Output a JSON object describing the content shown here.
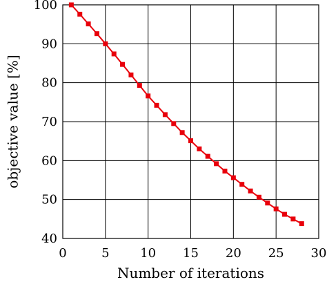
{
  "chart_data": {
    "type": "line",
    "xlabel": "Number of iterations",
    "ylabel": "objective value [%]",
    "xlim": [
      0,
      30
    ],
    "ylim": [
      40,
      100
    ],
    "x_ticks": [
      0,
      5,
      10,
      15,
      20,
      25,
      30
    ],
    "y_ticks": [
      40,
      50,
      60,
      70,
      80,
      90,
      100
    ],
    "grid": true,
    "series": [
      {
        "color": "#e8000b",
        "marker": "square",
        "x": [
          1,
          2,
          3,
          4,
          5,
          6,
          7,
          8,
          9,
          10,
          11,
          12,
          13,
          14,
          15,
          16,
          17,
          18,
          19,
          20,
          21,
          22,
          23,
          24,
          25,
          26,
          27,
          28
        ],
        "y": [
          100,
          97.6,
          95.1,
          92.6,
          90.0,
          87.4,
          84.7,
          82.0,
          79.3,
          76.6,
          74.2,
          71.8,
          69.5,
          67.2,
          65.1,
          63.0,
          61.1,
          59.2,
          57.3,
          55.6,
          53.9,
          52.2,
          50.6,
          49.1,
          47.6,
          46.2,
          45.0,
          43.8
        ]
      }
    ]
  }
}
